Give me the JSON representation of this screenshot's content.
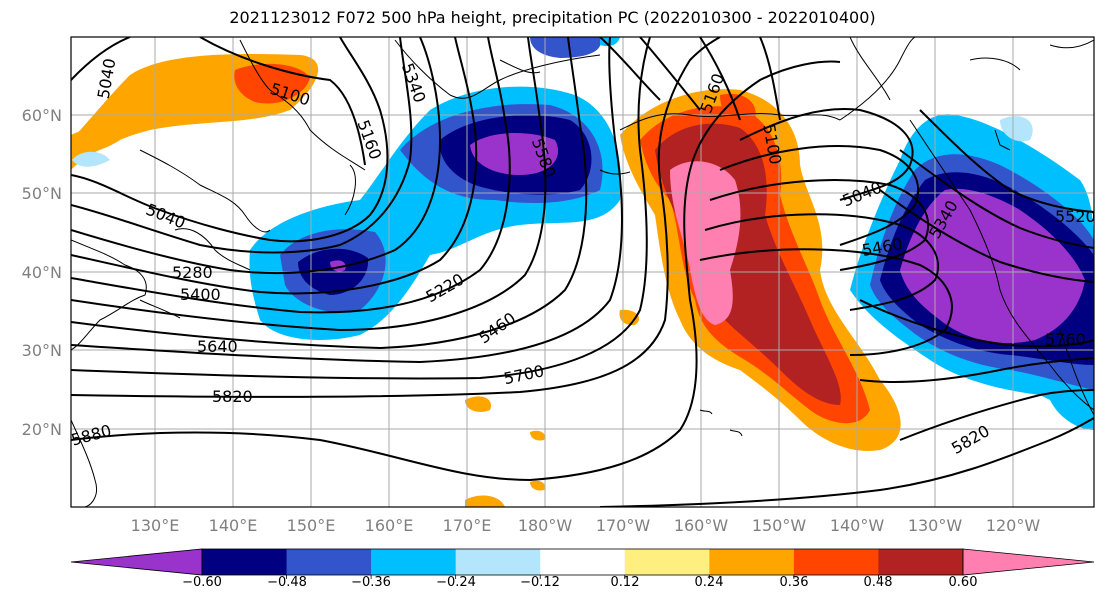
{
  "title": "2021123012 F072 500 hPa height, precipitation PC (2022010300 - 2022010400)",
  "lat_labels": [
    "60°N",
    "50°N",
    "40°N",
    "30°N",
    "20°N"
  ],
  "lon_labels": [
    "130°E",
    "140°E",
    "150°E",
    "160°E",
    "170°E",
    "180°W",
    "170°W",
    "160°W",
    "150°W",
    "140°W",
    "130°W",
    "120°W"
  ],
  "colorbar": {
    "colors": [
      "#9933cc",
      "#000080",
      "#3355cc",
      "#00bfff",
      "#b3e5fc",
      "#ffffff",
      "#ffee80",
      "#ffa500",
      "#ff4500",
      "#b22222",
      "#ff80b0"
    ],
    "tick_labels": [
      "−0.60",
      "−0.48",
      "−0.36",
      "−0.24",
      "−0.12",
      "0.12",
      "0.24",
      "0.36",
      "0.48",
      "0.60"
    ]
  },
  "contour_labels": [
    "5040",
    "5100",
    "5160",
    "5340",
    "5580",
    "5100",
    "5160",
    "5040",
    "5280",
    "5400",
    "5220",
    "5460",
    "5640",
    "5700",
    "5820",
    "5880",
    "5040",
    "5460",
    "5340",
    "5520",
    "5760",
    "5820"
  ],
  "colors": {
    "contour": "#000000",
    "grid": "#aaaaaa",
    "coast": "#000000"
  }
}
